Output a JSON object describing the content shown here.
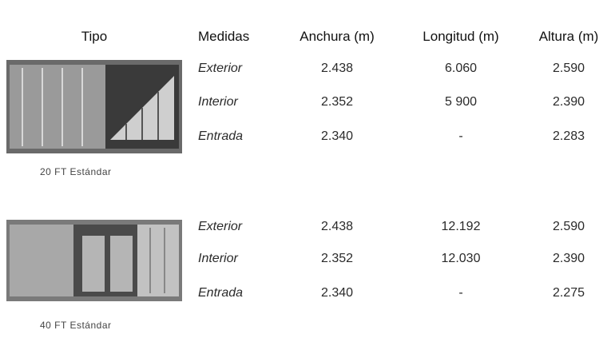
{
  "table": {
    "header": [
      "Tipo",
      "Medidas",
      "Anchura (m)",
      "Longitud (m)",
      "Altura (m)"
    ],
    "groups": [
      {
        "type": "20 FT Estándar",
        "rows": [
          [
            "Exterior",
            "2.438",
            "6.060",
            "2.590"
          ],
          [
            "Interior",
            "2.352",
            "5 900",
            "2.390"
          ],
          [
            "Entrada",
            "2.340",
            "-",
            "2.283"
          ]
        ]
      },
      {
        "type": "40 FT Estándar",
        "rows": [
          [
            "Exterior",
            "2.438",
            "12.192",
            "2.590"
          ],
          [
            "Interior",
            "2.352",
            "12.030",
            "2.390"
          ],
          [
            "Entrada",
            "2.340",
            "-",
            "2.275"
          ]
        ]
      }
    ]
  }
}
